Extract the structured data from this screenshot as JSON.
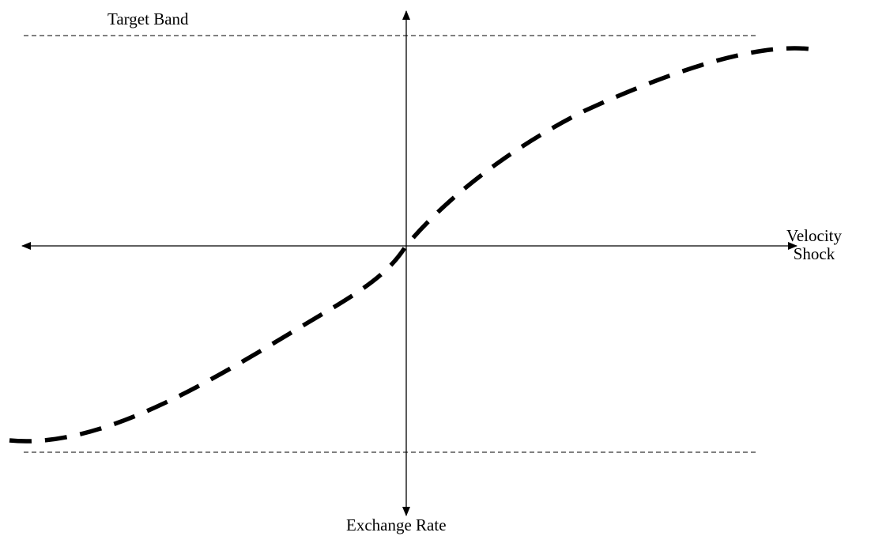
{
  "labels": {
    "target_band": "Target Band",
    "x_axis_line1": "Velocity",
    "x_axis_line2": "Shock",
    "y_axis": "Exchange Rate"
  },
  "colors": {
    "ink": "#000000",
    "background": "#ffffff"
  }
}
